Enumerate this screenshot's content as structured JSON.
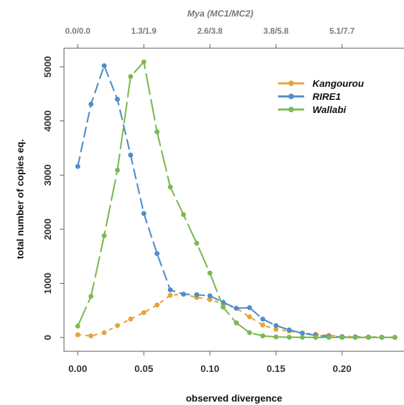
{
  "chart_data": {
    "type": "line",
    "title": "",
    "xlabel": "observed divergence",
    "ylabel": "total number of copies eq.",
    "top_axis_label": "Mya (MC1/MC2)",
    "top_ticks": [
      {
        "x": 0.0,
        "label": "0.0/0.0"
      },
      {
        "x": 0.05,
        "label": "1.3/1.9"
      },
      {
        "x": 0.1,
        "label": "2.6/3.8"
      },
      {
        "x": 0.15,
        "label": "3.8/5.8"
      },
      {
        "x": 0.2,
        "label": "5.1/7.7"
      }
    ],
    "xlim": [
      0,
      0.24
    ],
    "ylim": [
      0,
      5200
    ],
    "x_ticks": [
      {
        "value": 0.0,
        "label": "0.00"
      },
      {
        "value": 0.05,
        "label": "0.05"
      },
      {
        "value": 0.1,
        "label": "0.10"
      },
      {
        "value": 0.15,
        "label": "0.15"
      },
      {
        "value": 0.2,
        "label": "0.20"
      }
    ],
    "y_ticks": [
      {
        "value": 0,
        "label": "0"
      },
      {
        "value": 1000,
        "label": "1000"
      },
      {
        "value": 2000,
        "label": "2000"
      },
      {
        "value": 3000,
        "label": "3000"
      },
      {
        "value": 4000,
        "label": "4000"
      },
      {
        "value": 5000,
        "label": "5000"
      }
    ],
    "grid": false,
    "legend_position": "top-right",
    "x": [
      0.0,
      0.01,
      0.02,
      0.03,
      0.04,
      0.05,
      0.06,
      0.07,
      0.08,
      0.09,
      0.1,
      0.11,
      0.12,
      0.13,
      0.14,
      0.15,
      0.16,
      0.17,
      0.18,
      0.19,
      0.2,
      0.21,
      0.22,
      0.23,
      0.24
    ],
    "series": [
      {
        "name": "Kangourou",
        "color": "#e8a33a",
        "values": [
          50,
          30,
          90,
          220,
          340,
          460,
          600,
          780,
          800,
          740,
          700,
          620,
          540,
          380,
          230,
          150,
          120,
          80,
          60,
          40,
          20,
          15,
          10,
          8,
          5
        ]
      },
      {
        "name": "RIRE1",
        "color": "#4f8ec9",
        "values": [
          3160,
          4310,
          5020,
          4400,
          3370,
          2290,
          1550,
          880,
          800,
          790,
          770,
          650,
          540,
          550,
          340,
          220,
          140,
          80,
          40,
          20,
          10,
          5,
          3,
          2,
          0
        ]
      },
      {
        "name": "Wallabi",
        "color": "#7db953",
        "values": [
          210,
          760,
          1880,
          3090,
          4820,
          5090,
          3800,
          2780,
          2270,
          1740,
          1190,
          560,
          270,
          90,
          30,
          10,
          5,
          3,
          2,
          1,
          1,
          0,
          0,
          0,
          0
        ]
      }
    ]
  }
}
